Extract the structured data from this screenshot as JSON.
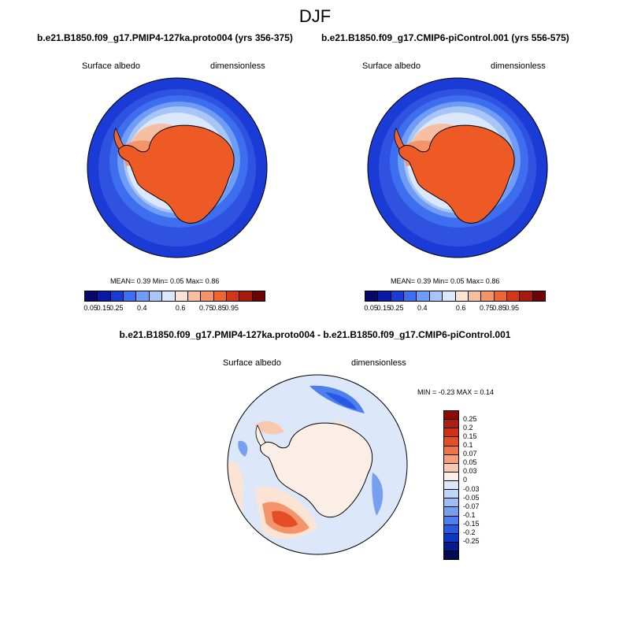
{
  "season": "DJF",
  "top_left": {
    "title": "b.e21.B1850.f09_g17.PMIP4-127ka.proto004 (yrs 356-375)",
    "variable": "Surface albedo",
    "units": "dimensionless",
    "stats": "MEAN=  0.39  Min=  0.05  Max=  0.86"
  },
  "top_right": {
    "title": "b.e21.B1850.f09_g17.CMIP6-piControl.001 (yrs 556-575)",
    "variable": "Surface albedo",
    "units": "dimensionless",
    "stats": "MEAN=  0.39  Min=  0.05  Max=  0.86"
  },
  "bottom": {
    "title": "b.e21.B1850.f09_g17.PMIP4-127ka.proto004 - b.e21.B1850.f09_g17.CMIP6-piControl.001",
    "variable": "Surface albedo",
    "units": "dimensionless",
    "stats": "MIN =  -0.23 MAX =   0.14"
  },
  "colorbar_abs": {
    "colors": [
      "#08086b",
      "#0b1aa6",
      "#1a3bd6",
      "#3d6ef0",
      "#6f9cf5",
      "#a7c6f7",
      "#dbe8fb",
      "#fbe4d4",
      "#f7bfa2",
      "#f4946a",
      "#ee6535",
      "#d8361b",
      "#a61a0e",
      "#6b0505"
    ],
    "ticks": [
      "0.05",
      "0.15",
      "0.25",
      "0.4",
      "0.6",
      "0.75",
      "0.85",
      "0.95"
    ]
  },
  "colorbar_diff": {
    "colors": [
      "#8a0c08",
      "#b01d12",
      "#cf3118",
      "#e44e26",
      "#f07448",
      "#f59e7c",
      "#f9c8b1",
      "#fbeee6",
      "#dce8fa",
      "#bfd6f7",
      "#9dbef3",
      "#769ff0",
      "#4f7fed",
      "#2759e4",
      "#0e36c2",
      "#061b90",
      "#020a52"
    ],
    "ticks": [
      "0.25",
      "0.2",
      "0.15",
      "0.1",
      "0.07",
      "0.05",
      "0.03",
      "0",
      "-0.03",
      "-0.05",
      "-0.07",
      "-0.1",
      "-0.15",
      "-0.2",
      "-0.25"
    ]
  }
}
